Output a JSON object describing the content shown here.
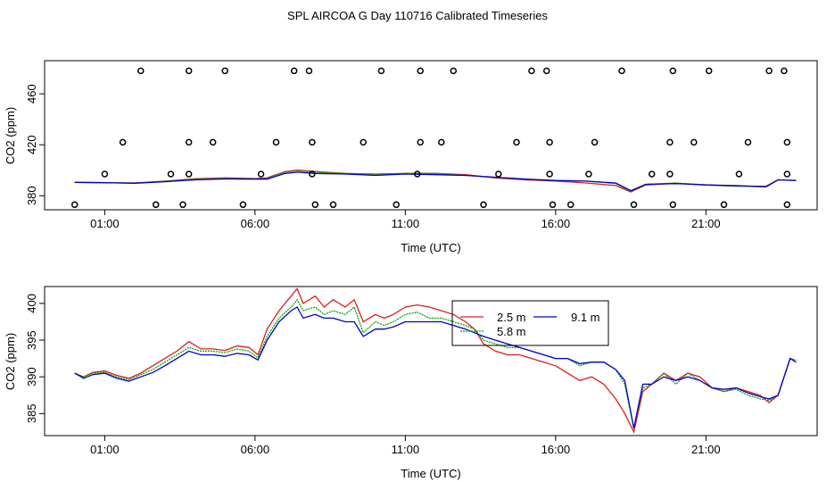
{
  "title": "SPL AIRCOA G  Day 110716  Calibrated Timeseries",
  "chart_data": [
    {
      "type": "line",
      "panel": "top",
      "xlabel": "Time (UTC)",
      "ylabel": "CO2 (ppm)",
      "x_tick_labels": [
        "01:00",
        "06:00",
        "11:00",
        "16:00",
        "21:00"
      ],
      "x_ticks": [
        1,
        6,
        11,
        16,
        21
      ],
      "xlim": [
        -1.0,
        24.7
      ],
      "y_ticks": [
        380,
        420,
        460
      ],
      "y_tick_labels": [
        "380",
        "420",
        "460"
      ],
      "ylim": [
        369,
        486
      ],
      "series": [
        {
          "color": "#e41a1c",
          "x": [
            0.0,
            1.0,
            2.0,
            3.0,
            4.0,
            5.0,
            6.0,
            6.4,
            7.0,
            7.4,
            8.0,
            9.0,
            10.0,
            11.0,
            12.0,
            13.0,
            14.0,
            15.0,
            16.0,
            17.0,
            18.0,
            18.5,
            19.0,
            20.0,
            21.0,
            22.0,
            23.0,
            23.4,
            24.0
          ],
          "y": [
            390.5,
            390.3,
            390.0,
            391.5,
            393.3,
            394.0,
            393.5,
            394.0,
            399.0,
            400.2,
            399.0,
            397.5,
            397.0,
            397.5,
            397.5,
            396.5,
            394.0,
            392.5,
            391.5,
            390.0,
            388.0,
            383.0,
            388.5,
            389.8,
            388.5,
            387.5,
            387.5,
            392.5,
            392.0
          ]
        },
        {
          "color": "#00aa00",
          "x": [
            0.0,
            1.0,
            2.0,
            3.0,
            4.0,
            5.0,
            6.0,
            6.4,
            7.0,
            7.4,
            8.0,
            9.0,
            10.0,
            11.0,
            12.0,
            13.0,
            14.0,
            15.0,
            16.0,
            17.0,
            18.0,
            18.5,
            19.0,
            20.0,
            21.0,
            22.0,
            23.0,
            23.4,
            24.0
          ],
          "y": [
            390.5,
            390.3,
            390.0,
            391.3,
            393.0,
            393.6,
            393.3,
            393.5,
            398.5,
            399.5,
            398.5,
            397.5,
            396.5,
            397.5,
            397.5,
            396.0,
            394.5,
            393.0,
            392.0,
            391.5,
            389.5,
            383.5,
            389.0,
            390.0,
            388.5,
            387.5,
            387.0,
            392.5,
            392.0
          ]
        },
        {
          "color": "#0000cc",
          "x": [
            0.0,
            1.0,
            2.0,
            3.0,
            4.0,
            5.0,
            6.0,
            6.4,
            7.0,
            7.4,
            8.0,
            9.0,
            10.0,
            11.0,
            12.0,
            13.0,
            14.0,
            15.0,
            16.0,
            17.0,
            18.0,
            18.5,
            19.0,
            20.0,
            21.0,
            22.0,
            23.0,
            23.4,
            24.0
          ],
          "y": [
            390.5,
            390.2,
            389.8,
            391.0,
            392.5,
            393.2,
            393.0,
            393.0,
            397.5,
            398.5,
            397.5,
            397.0,
            396.0,
            397.0,
            396.5,
            396.0,
            394.5,
            393.0,
            392.0,
            391.5,
            390.0,
            384.0,
            389.0,
            389.5,
            388.5,
            388.0,
            387.0,
            392.5,
            392.0
          ]
        }
      ],
      "markers": {
        "symbol": "open-circle",
        "x": [
          0.0,
          1.0,
          1.6,
          2.2,
          2.7,
          3.2,
          3.6,
          3.8,
          3.8,
          3.8,
          4.6,
          5.0,
          5.6,
          6.2,
          6.7,
          7.3,
          7.8,
          7.9,
          7.9,
          8.0,
          8.6,
          9.6,
          10.2,
          10.7,
          11.4,
          11.5,
          11.5,
          12.2,
          12.6,
          13.6,
          14.1,
          14.7,
          15.2,
          15.7,
          15.8,
          15.8,
          15.9,
          16.5,
          17.1,
          17.3,
          18.2,
          18.6,
          19.2,
          19.8,
          19.8,
          19.9,
          19.9,
          20.6,
          21.1,
          21.6,
          22.1,
          22.4,
          23.1,
          23.6,
          23.7,
          23.7,
          23.7
        ],
        "y": [
          373,
          397,
          422,
          478,
          373,
          397,
          373,
          422,
          397,
          478,
          422,
          478,
          373,
          397,
          422,
          478,
          478,
          422,
          397,
          373,
          373,
          422,
          478,
          373,
          397,
          422,
          478,
          422,
          478,
          373,
          397,
          422,
          478,
          478,
          422,
          397,
          373,
          373,
          397,
          422,
          478,
          373,
          397,
          422,
          397,
          373,
          478,
          422,
          478,
          373,
          397,
          422,
          478,
          478,
          422,
          397,
          373
        ]
      }
    },
    {
      "type": "line",
      "panel": "bottom",
      "xlabel": "Time (UTC)",
      "ylabel": "CO2 (ppm)",
      "x_tick_labels": [
        "01:00",
        "06:00",
        "11:00",
        "16:00",
        "21:00"
      ],
      "x_ticks": [
        1,
        6,
        11,
        16,
        21
      ],
      "xlim": [
        -1.0,
        24.7
      ],
      "y_ticks": [
        385,
        390,
        395,
        400
      ],
      "y_tick_labels": [
        "385",
        "390",
        "395",
        "400"
      ],
      "ylim": [
        382.0,
        402.3
      ],
      "legend_position": "top-right",
      "series": [
        {
          "name": "2.5 m",
          "color": "#e41a1c",
          "x": [
            0.0,
            0.3,
            0.6,
            1.0,
            1.4,
            1.8,
            2.2,
            2.6,
            3.0,
            3.4,
            3.8,
            4.2,
            4.6,
            5.0,
            5.4,
            5.8,
            6.1,
            6.4,
            6.8,
            7.2,
            7.4,
            7.6,
            8.0,
            8.3,
            8.6,
            9.0,
            9.3,
            9.6,
            10.0,
            10.3,
            10.6,
            11.0,
            11.4,
            11.8,
            12.2,
            12.6,
            13.0,
            13.3,
            13.6,
            14.0,
            14.4,
            14.8,
            15.2,
            15.6,
            16.0,
            16.4,
            16.8,
            17.2,
            17.6,
            18.0,
            18.3,
            18.6,
            18.9,
            19.2,
            19.6,
            20.0,
            20.4,
            20.8,
            21.2,
            21.6,
            22.0,
            22.4,
            22.8,
            23.1,
            23.4,
            23.8,
            24.0
          ],
          "y": [
            390.5,
            390.0,
            390.6,
            390.8,
            390.2,
            389.8,
            390.5,
            391.5,
            392.5,
            393.5,
            394.8,
            393.8,
            393.8,
            393.6,
            394.2,
            394.0,
            393.0,
            396.5,
            399.0,
            401.0,
            402.0,
            400.0,
            401.0,
            399.5,
            400.5,
            399.5,
            400.5,
            397.5,
            398.5,
            398.0,
            398.5,
            399.5,
            399.8,
            399.5,
            399.0,
            398.5,
            397.5,
            396.5,
            394.5,
            393.5,
            393.0,
            393.0,
            392.5,
            392.0,
            391.5,
            390.5,
            389.5,
            390.0,
            389.0,
            387.0,
            385.0,
            382.5,
            388.0,
            389.0,
            390.5,
            389.5,
            390.5,
            390.0,
            388.5,
            388.0,
            388.5,
            388.0,
            387.5,
            386.5,
            387.5,
            392.5,
            392.0
          ]
        },
        {
          "name": "5.8 m",
          "color": "#00aa00",
          "x": [
            0.0,
            0.3,
            0.6,
            1.0,
            1.4,
            1.8,
            2.2,
            2.6,
            3.0,
            3.4,
            3.8,
            4.2,
            4.6,
            5.0,
            5.4,
            5.8,
            6.1,
            6.4,
            6.8,
            7.2,
            7.4,
            7.6,
            8.0,
            8.3,
            8.6,
            9.0,
            9.3,
            9.6,
            10.0,
            10.3,
            10.6,
            11.0,
            11.4,
            11.8,
            12.2,
            12.6,
            13.0,
            13.3,
            13.6,
            14.0,
            14.4,
            14.8,
            15.2,
            15.6,
            16.0,
            16.4,
            16.8,
            17.2,
            17.6,
            18.0,
            18.3,
            18.6,
            18.9,
            19.2,
            19.6,
            20.0,
            20.4,
            20.8,
            21.2,
            21.6,
            22.0,
            22.4,
            22.8,
            23.1,
            23.4,
            23.8,
            24.0
          ],
          "y": [
            390.5,
            390.0,
            390.5,
            390.6,
            390.0,
            389.6,
            390.3,
            391.0,
            392.0,
            393.0,
            394.0,
            393.5,
            393.5,
            393.3,
            393.8,
            393.5,
            392.6,
            395.5,
            398.0,
            399.5,
            400.5,
            399.0,
            399.5,
            398.5,
            399.0,
            398.5,
            399.5,
            396.0,
            397.5,
            397.0,
            397.5,
            398.5,
            398.8,
            398.0,
            398.0,
            397.5,
            397.0,
            396.5,
            395.0,
            394.5,
            394.0,
            394.0,
            393.5,
            393.0,
            392.5,
            392.5,
            391.5,
            392.0,
            392.0,
            391.0,
            389.0,
            383.0,
            388.5,
            389.0,
            390.5,
            389.0,
            390.5,
            389.5,
            388.5,
            388.0,
            388.3,
            387.5,
            387.0,
            386.8,
            387.5,
            392.5,
            392.3
          ]
        },
        {
          "name": "9.1 m",
          "color": "#0000cc",
          "x": [
            0.0,
            0.3,
            0.6,
            1.0,
            1.4,
            1.8,
            2.2,
            2.6,
            3.0,
            3.4,
            3.8,
            4.2,
            4.6,
            5.0,
            5.4,
            5.8,
            6.1,
            6.4,
            6.8,
            7.2,
            7.4,
            7.6,
            8.0,
            8.3,
            8.6,
            9.0,
            9.3,
            9.6,
            10.0,
            10.3,
            10.6,
            11.0,
            11.4,
            11.8,
            12.2,
            12.6,
            13.0,
            13.3,
            13.6,
            14.0,
            14.4,
            14.8,
            15.2,
            15.6,
            16.0,
            16.4,
            16.8,
            17.2,
            17.6,
            18.0,
            18.3,
            18.6,
            18.9,
            19.2,
            19.6,
            20.0,
            20.4,
            20.8,
            21.2,
            21.6,
            22.0,
            22.4,
            22.8,
            23.1,
            23.4,
            23.8,
            24.0
          ],
          "y": [
            390.5,
            389.8,
            390.3,
            390.5,
            389.8,
            389.4,
            390.0,
            390.6,
            391.5,
            392.5,
            393.5,
            393.0,
            393.0,
            392.8,
            393.2,
            393.0,
            392.3,
            395.0,
            397.5,
            399.0,
            399.5,
            398.0,
            398.5,
            398.0,
            398.0,
            397.5,
            397.5,
            395.5,
            396.5,
            396.5,
            396.8,
            397.5,
            397.5,
            397.5,
            397.5,
            397.0,
            396.5,
            396.0,
            395.5,
            395.0,
            394.5,
            394.0,
            393.5,
            393.0,
            392.5,
            392.5,
            391.8,
            392.0,
            392.0,
            391.0,
            389.5,
            383.0,
            389.0,
            389.0,
            390.0,
            389.5,
            390.0,
            389.5,
            388.5,
            388.3,
            388.5,
            387.8,
            387.3,
            387.0,
            387.5,
            392.5,
            392.0
          ]
        }
      ]
    }
  ]
}
